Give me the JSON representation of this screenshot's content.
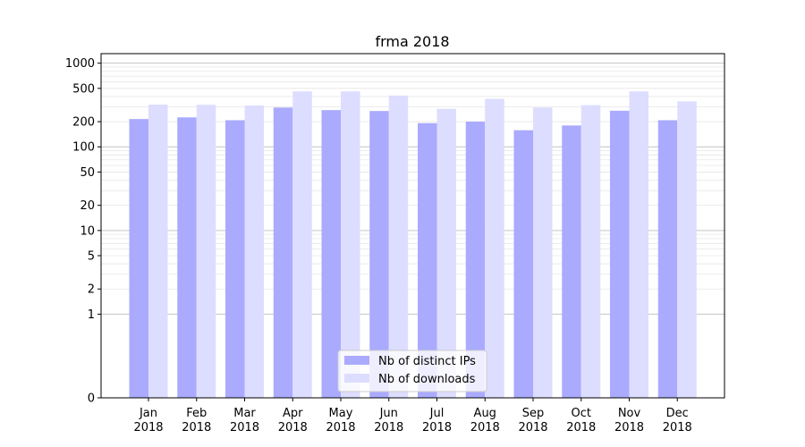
{
  "chart_data": {
    "type": "bar",
    "title": "frma 2018",
    "xlabel": "",
    "ylabel": "",
    "yscale": "symlog",
    "ylim": [
      0,
      1300
    ],
    "yticks": [
      0,
      1,
      2,
      5,
      10,
      20,
      50,
      100,
      200,
      500,
      1000
    ],
    "ytick_labels": [
      "0",
      "1",
      "2",
      "5",
      "10",
      "20",
      "50",
      "100",
      "200",
      "500",
      "1000"
    ],
    "grid": true,
    "legend_position": "bottom-center",
    "categories": [
      {
        "month": "Jan",
        "year": "2018"
      },
      {
        "month": "Feb",
        "year": "2018"
      },
      {
        "month": "Mar",
        "year": "2018"
      },
      {
        "month": "Apr",
        "year": "2018"
      },
      {
        "month": "May",
        "year": "2018"
      },
      {
        "month": "Jun",
        "year": "2018"
      },
      {
        "month": "Jul",
        "year": "2018"
      },
      {
        "month": "Aug",
        "year": "2018"
      },
      {
        "month": "Sep",
        "year": "2018"
      },
      {
        "month": "Oct",
        "year": "2018"
      },
      {
        "month": "Nov",
        "year": "2018"
      },
      {
        "month": "Dec",
        "year": "2018"
      }
    ],
    "series": [
      {
        "name": "Nb of distinct IPs",
        "color": "#aaaaff",
        "values": [
          215,
          225,
          208,
          295,
          275,
          268,
          192,
          200,
          158,
          180,
          270,
          208
        ]
      },
      {
        "name": "Nb of downloads",
        "color": "#ddddff",
        "values": [
          320,
          318,
          312,
          460,
          460,
          410,
          285,
          375,
          295,
          315,
          460,
          350
        ]
      }
    ]
  }
}
